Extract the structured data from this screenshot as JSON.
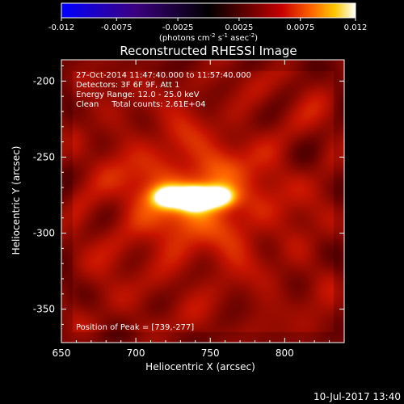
{
  "chart_data": {
    "type": "heatmap",
    "title": "Reconstructed RHESSI Image",
    "xlabel": "Heliocentric X (arcsec)",
    "ylabel": "Heliocentric Y (arcsec)",
    "xlim": [
      650,
      840
    ],
    "ylim": [
      -372,
      -186
    ],
    "x_ticks": [
      650,
      700,
      750,
      800
    ],
    "y_ticks": [
      -200,
      -250,
      -300,
      -350
    ],
    "colorbar": {
      "range": [
        -0.012,
        0.012
      ],
      "ticks": [
        "-0.012",
        "-0.0075",
        "-0.0025",
        "0.0025",
        "0.0075",
        "0.012"
      ],
      "label_main": "(photons cm",
      "label_sup1": "-2",
      "label_mid1": " s",
      "label_sup2": "-1",
      "label_mid2": " asec",
      "label_sup3": "-2",
      "label_end": ")"
    },
    "annotations": [
      "27-Oct-2014 11:47:40.000 to 11:57:40.000",
      "Detectors: 3F 6F 9F, Att 1",
      "Energy Range: 12.0 - 25.0 keV",
      "Clean     Total counts: 2.61E+04"
    ],
    "peak_label": "Position of Peak = [739,-277]",
    "peak": [
      739,
      -277
    ],
    "source": {
      "components": [
        {
          "x": 722,
          "y": -276,
          "sx": 8,
          "sy": 5,
          "amp": 0.75
        },
        {
          "x": 739,
          "y": -277,
          "sx": 7,
          "sy": 5,
          "amp": 1.0
        },
        {
          "x": 755,
          "y": -276,
          "sx": 8,
          "sy": 5,
          "amp": 0.8
        }
      ]
    },
    "background_level": 0.38,
    "colors": {
      "colormap": [
        "#0000ff",
        "#3c0080",
        "#000000",
        "#5a0000",
        "#c80000",
        "#ff6400",
        "#ffc800",
        "#ffffff"
      ]
    }
  },
  "footer": {
    "timestamp": "10-Jul-2017 13:40"
  }
}
